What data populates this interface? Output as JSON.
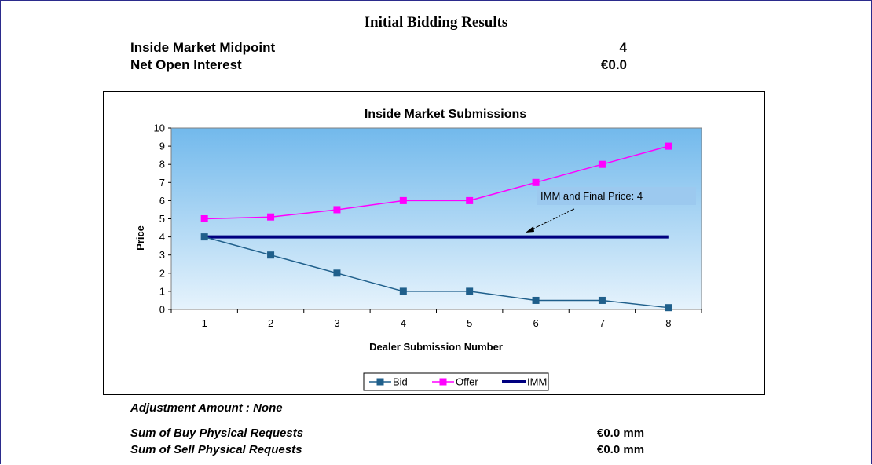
{
  "page": {
    "title": "Initial Bidding Results",
    "midpoint_label": "Inside Market Midpoint",
    "midpoint_value": "4",
    "open_interest_label": "Net Open Interest",
    "open_interest_value": "€0.0",
    "adjustment_text": "Adjustment Amount :   None",
    "buy_label": "Sum of Buy Physical Requests",
    "buy_value": "€0.0 mm",
    "sell_label": "Sum of Sell Physical Requests",
    "sell_value": "€0.0 mm"
  },
  "chart_data": {
    "type": "line",
    "title": "Inside Market Submissions",
    "xlabel": "Dealer Submission Number",
    "ylabel": "Price",
    "categories": [
      "1",
      "2",
      "3",
      "4",
      "5",
      "6",
      "7",
      "8"
    ],
    "yticks": [
      "0",
      "1",
      "2",
      "3",
      "4",
      "5",
      "6",
      "7",
      "8",
      "9",
      "10"
    ],
    "ylim": [
      0,
      10
    ],
    "grid": false,
    "legend": "bottom",
    "series": [
      {
        "name": "Bid",
        "color": "#1f5f8b",
        "marker": "square",
        "values": [
          4,
          3,
          2,
          1,
          1,
          0.5,
          0.5,
          0.1
        ]
      },
      {
        "name": "Offer",
        "color": "#ff00ff",
        "marker": "square",
        "values": [
          5,
          5.1,
          5.5,
          6,
          6,
          7,
          8,
          9
        ]
      },
      {
        "name": "IMM",
        "color": "#000080",
        "marker": "none",
        "values": [
          4,
          4,
          4,
          4,
          4,
          4,
          4,
          4
        ]
      }
    ],
    "annotation": {
      "text": "IMM and Final Price: 4"
    }
  }
}
